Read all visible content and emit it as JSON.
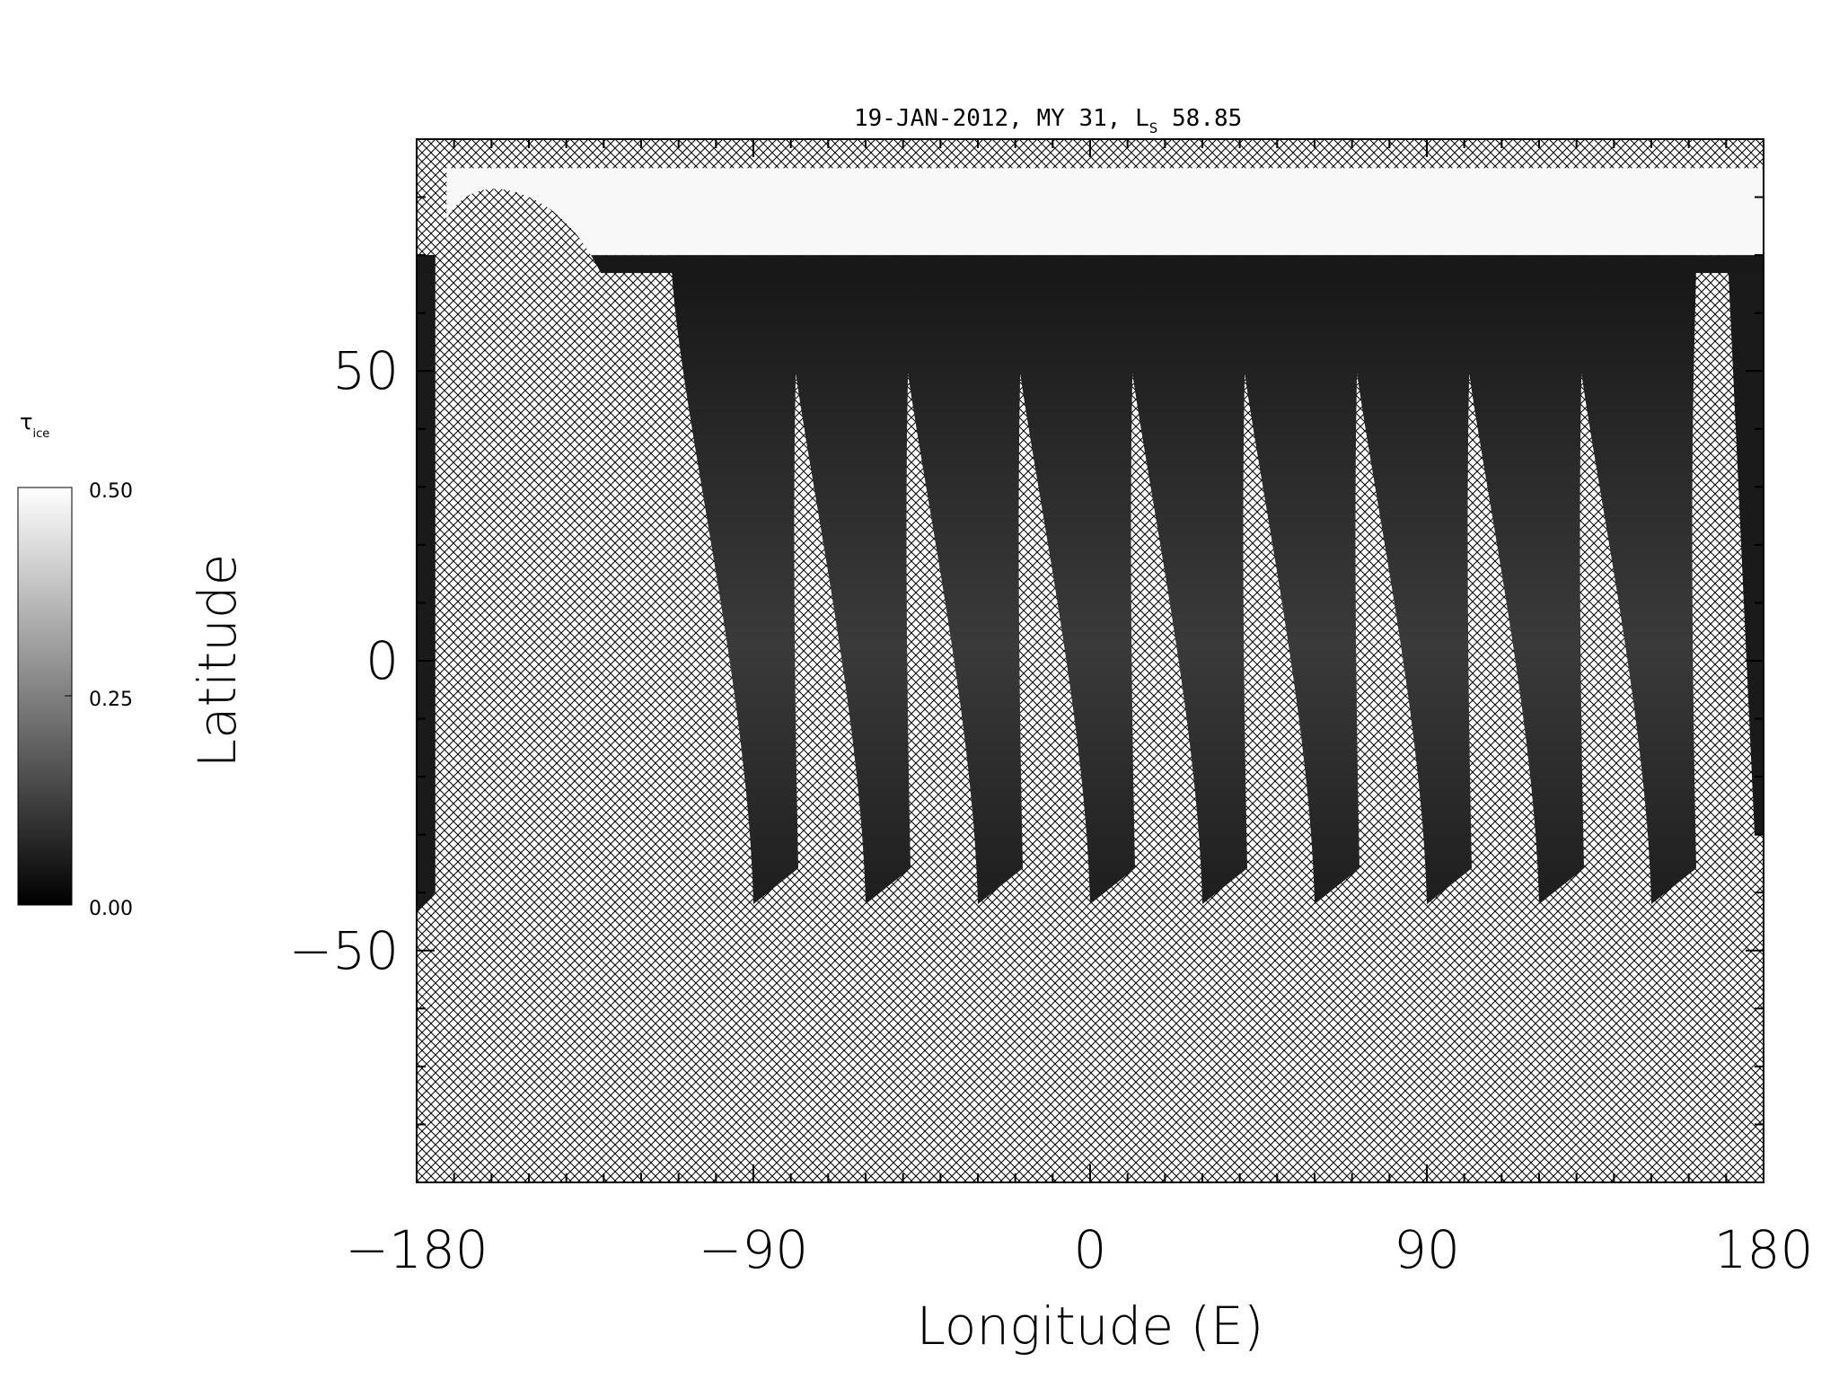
{
  "chart_data": {
    "type": "heatmap",
    "title_main": "19-JAN-2012, MY 31,  L",
    "title_sub": "S",
    "title_value": " 58.85",
    "xlabel": "Longitude (E)",
    "ylabel": "Latitude",
    "xlim": [
      -180,
      180
    ],
    "ylim": [
      -90,
      90
    ],
    "x_ticks": [
      -180,
      -90,
      0,
      90,
      180
    ],
    "x_tick_labels": [
      "−180",
      "−90",
      "0",
      "90",
      "180"
    ],
    "y_ticks": [
      -50,
      0,
      50
    ],
    "y_tick_labels": [
      "−50",
      "0",
      "50"
    ],
    "x_minor_step": 10,
    "y_minor_step": 10,
    "grid": false,
    "colorbar": {
      "label_main": "τ",
      "label_sub": "ice",
      "range": [
        0.0,
        0.5
      ],
      "ticks": [
        0.5,
        0.25,
        0.0
      ],
      "tick_labels": [
        "0.50",
        "0.25",
        "0.00"
      ],
      "colormap": "grayscale"
    },
    "no_data_pattern": "crosshatch",
    "polar_cap": {
      "lat_min": 70,
      "lat_max": 85,
      "value": 0.5
    },
    "swaths_lon_bottom_left": [
      -180,
      -90,
      -60,
      -30,
      0,
      30,
      60,
      90,
      120,
      150
    ],
    "swath_lat_bottom": -42,
    "swath_lat_top": 70,
    "colors": {
      "hatch": "#000000",
      "data_dark": "#151515",
      "cap": "#f8f8f8",
      "background": "#ffffff"
    }
  }
}
